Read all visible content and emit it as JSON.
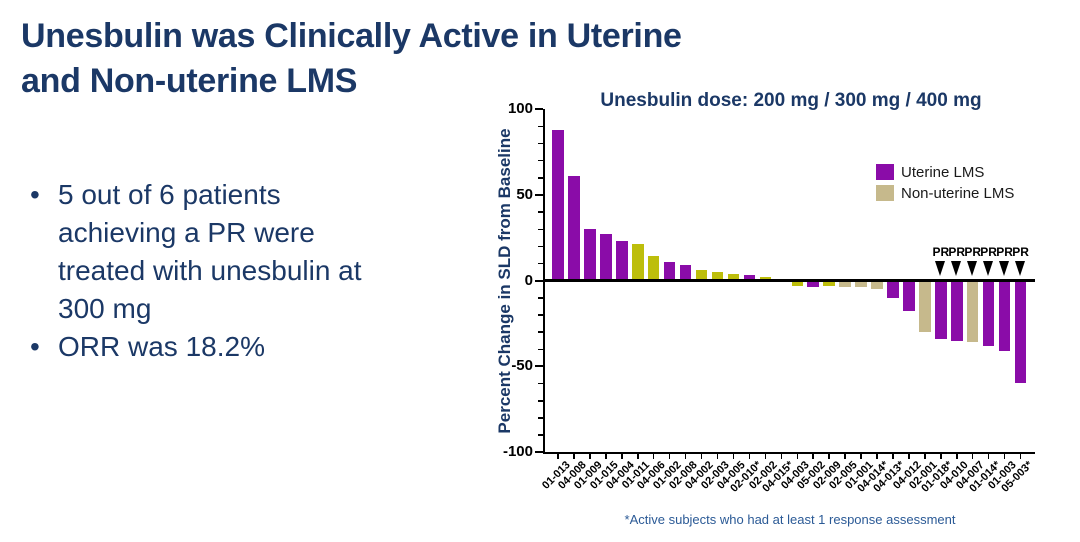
{
  "slide": {
    "title_lines": [
      "Unesbulin was Clinically Active in Uterine",
      "and Non-uterine LMS"
    ],
    "bullets": [
      "5 out of 6 patients achieving a PR were treated with unesbulin at 300 mg",
      "ORR was 18.2%"
    ],
    "footnote": "*Active subjects who had at least 1 response assessment",
    "title_color": "#1B3866",
    "footnote_color": "#2B5A96"
  },
  "chart_data": {
    "type": "bar",
    "title": "Unesbulin dose: 200 mg / 300 mg / 400 mg",
    "xlabel": "",
    "ylabel": "Percent Change in SLD from Baseline",
    "ylim": [
      -100,
      100
    ],
    "yticks": [
      100,
      50,
      0,
      -50,
      -100
    ],
    "minor_tick_step": 10,
    "grid": false,
    "categories": [
      "01-013",
      "04-008",
      "01-009",
      "01-015",
      "04-004",
      "01-011",
      "04-006",
      "01-002",
      "02-008",
      "04-002",
      "02-003",
      "04-005",
      "02-010*",
      "02-002",
      "04-015*",
      "04-003",
      "05-002",
      "02-009",
      "02-005",
      "01-001",
      "04-014*",
      "04-013*",
      "04-012",
      "02-001",
      "01-018*",
      "04-010",
      "04-007",
      "01-014*",
      "01-003",
      "05-003*"
    ],
    "values": [
      88,
      61,
      30,
      27,
      23,
      21,
      14,
      11,
      9,
      6,
      5,
      4,
      3,
      2,
      0,
      -3,
      -4,
      -3,
      -4,
      -4,
      -5,
      -10,
      -18,
      -30,
      -34,
      -35,
      -36,
      -38,
      -41,
      -60
    ],
    "bar_colors": [
      "purple",
      "purple",
      "purple",
      "purple",
      "purple",
      "olive",
      "olive",
      "purple",
      "purple",
      "olive",
      "olive",
      "olive",
      "purple",
      "olive",
      "olive",
      "olive",
      "purple",
      "olive",
      "tan",
      "tan",
      "tan",
      "purple",
      "purple",
      "tan",
      "purple",
      "purple",
      "tan",
      "purple",
      "purple",
      "purple"
    ],
    "pr_flags": [
      false,
      false,
      false,
      false,
      false,
      false,
      false,
      false,
      false,
      false,
      false,
      false,
      false,
      false,
      false,
      false,
      false,
      false,
      false,
      false,
      false,
      false,
      false,
      false,
      true,
      true,
      true,
      true,
      true,
      true
    ],
    "pr_marker_label": "PR",
    "palette": {
      "purple": "#8A0CA8",
      "olive": "#BDBE0B",
      "tan": "#C6B98C"
    },
    "legend": [
      {
        "label": "Uterine LMS",
        "color_key": "purple"
      },
      {
        "label": "Non-uterine LMS",
        "color_key": "tan"
      }
    ],
    "legend_position": "upper-right"
  }
}
